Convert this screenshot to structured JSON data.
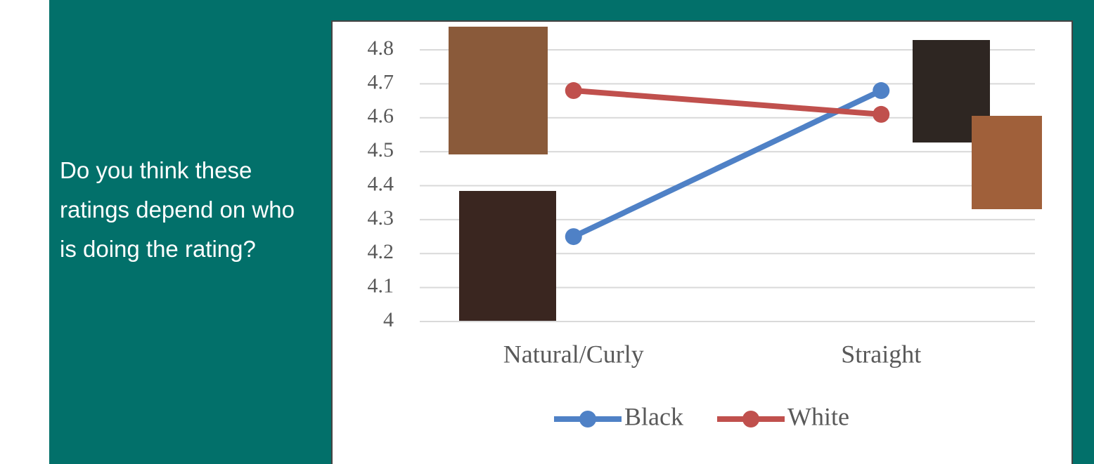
{
  "slide": {
    "question": "Do you think these ratings depend on who is doing the rating?"
  },
  "chart_data": {
    "type": "line",
    "categories": [
      "Natural/Curly",
      "Straight"
    ],
    "series": [
      {
        "name": "Black",
        "color": "#4f81c6",
        "values": [
          4.25,
          4.68
        ]
      },
      {
        "name": "White",
        "color": "#c0504d",
        "values": [
          4.68,
          4.61
        ]
      }
    ],
    "ylim": [
      4,
      4.8
    ],
    "yticks": [
      4.8,
      4.7,
      4.6,
      4.5,
      4.4,
      4.3,
      4.2,
      4.1,
      4
    ],
    "grid": true,
    "legend": "bottom"
  }
}
